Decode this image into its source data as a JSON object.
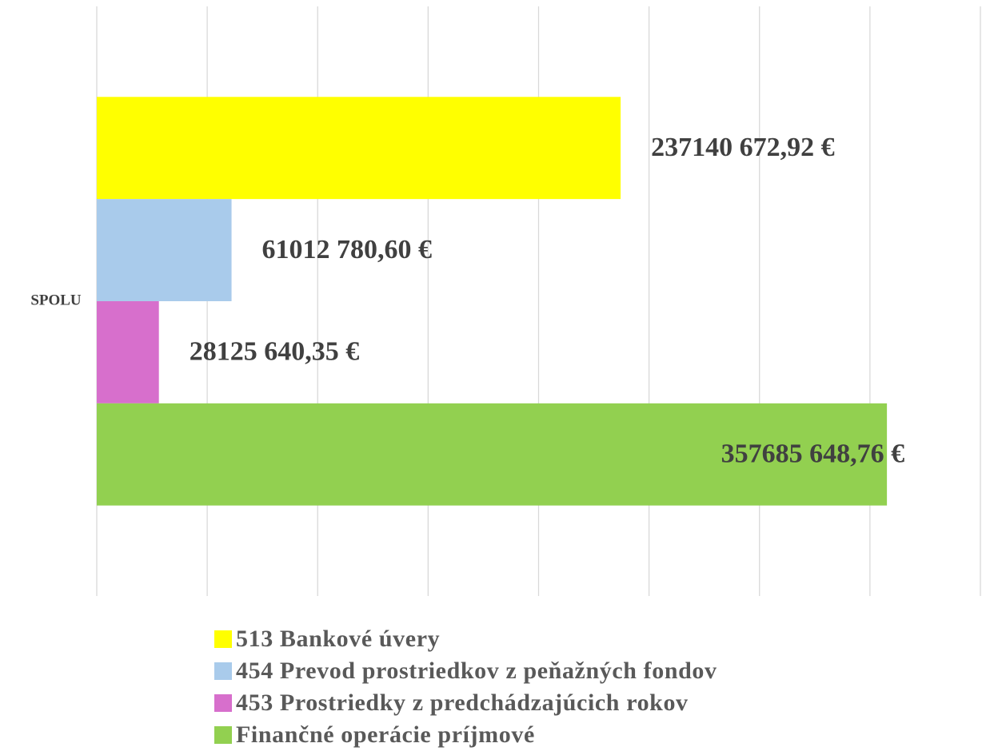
{
  "chart_data": {
    "type": "bar",
    "orientation": "horizontal",
    "categories": [
      "SPOLU"
    ],
    "series": [
      {
        "name": "513 Bankové úvery",
        "color": "#ffff00",
        "values": [
          237140672.92
        ],
        "value_labels": [
          "237140 672,92 €"
        ]
      },
      {
        "name": "454 Prevod prostriedkov z peňažných fondov",
        "color": "#a9cbeb",
        "values": [
          61012780.6
        ],
        "value_labels": [
          "61012 780,60 €"
        ]
      },
      {
        "name": "453 Prostriedky z predchádzajúcich rokov",
        "color": "#d76fcc",
        "values": [
          28125640.35
        ],
        "value_labels": [
          "28125 640,35 €"
        ]
      },
      {
        "name": "Finančné operácie príjmové",
        "color": "#92d050",
        "values": [
          357685648.76
        ],
        "value_labels": [
          "357685 648,76 €"
        ]
      }
    ],
    "xlim": [
      0,
      400000000
    ],
    "xticks": [
      0,
      50000000,
      100000000,
      150000000,
      200000000,
      250000000,
      300000000,
      350000000,
      400000000
    ],
    "grid": true,
    "legend": "bottom"
  }
}
